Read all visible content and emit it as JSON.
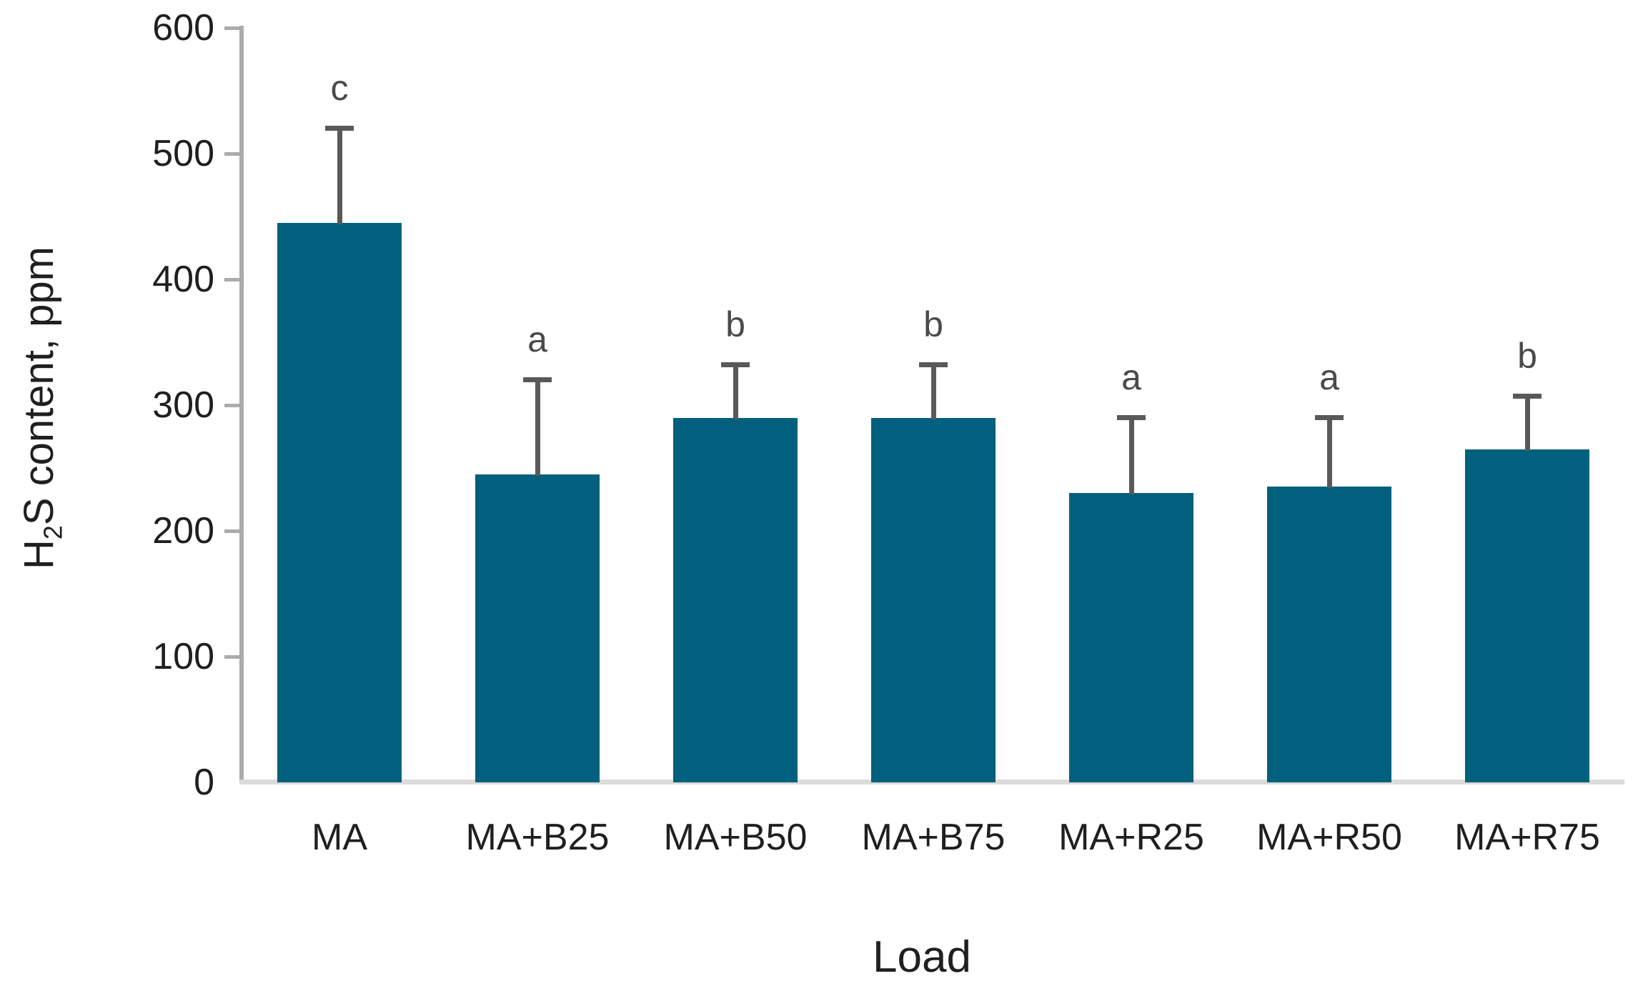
{
  "chart_data": {
    "type": "bar",
    "title": "",
    "xlabel": "Load",
    "ylabel": "H2S content, ppm",
    "ylabel_parts": {
      "pre": "H",
      "sub": "2",
      "post": "S content, ppm"
    },
    "categories": [
      "MA",
      "MA+B25",
      "MA+B50",
      "MA+B75",
      "MA+R25",
      "MA+R50",
      "MA+R75"
    ],
    "values": [
      445,
      245,
      290,
      290,
      230,
      235,
      265
    ],
    "errors_plus": [
      75,
      75,
      42,
      42,
      60,
      55,
      42
    ],
    "sig_letters": [
      "c",
      "a",
      "b",
      "b",
      "a",
      "a",
      "b"
    ],
    "yticks": [
      0,
      100,
      200,
      300,
      400,
      500,
      600
    ],
    "ylim": [
      0,
      600
    ],
    "grid": false,
    "legend": null,
    "bar_color": "#02607F",
    "error_bar_color": "#595959",
    "y_axis_line_color": "#ABABAB",
    "baseline_color": "#DBDBDB",
    "tick_label_color": "#1f1f1f",
    "sig_letter_color": "#4a4a4a"
  }
}
